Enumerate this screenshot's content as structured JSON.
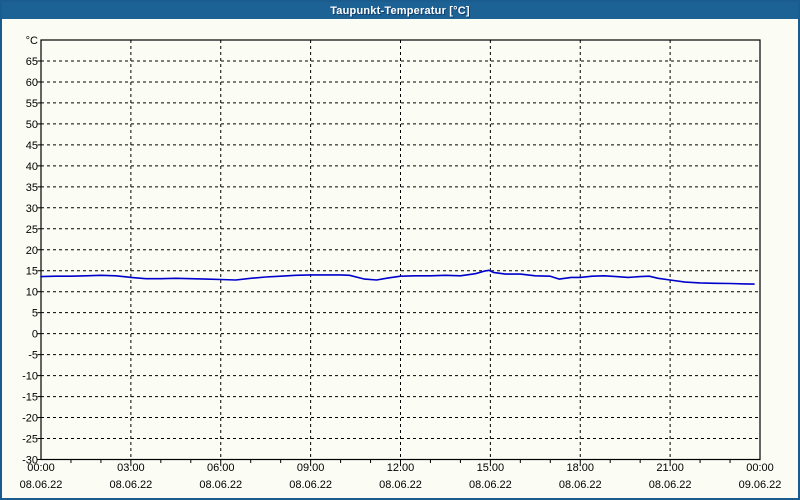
{
  "window": {
    "title": "Taupunkt-Temperatur [°C]",
    "titlebar_color": "#1d6295",
    "border_color": "#1a5c8e",
    "background_color": "#fbfdf4"
  },
  "chart_data": {
    "type": "line",
    "title": "Taupunkt-Temperatur [°C]",
    "grid": "dashed",
    "legend": "none",
    "x_axis": {
      "unit": "time",
      "range_hours": [
        0,
        24
      ],
      "major_tick_hours": 3,
      "minor_tick_hours": 1,
      "gridline_hours": [
        3,
        6,
        9,
        12,
        15,
        18,
        21
      ],
      "labels": [
        {
          "hour": 0,
          "time": "00:00",
          "date": "08.06.22"
        },
        {
          "hour": 3,
          "time": "03:00",
          "date": "08.06.22"
        },
        {
          "hour": 6,
          "time": "06:00",
          "date": "08.06.22"
        },
        {
          "hour": 9,
          "time": "09:00",
          "date": "08.06.22"
        },
        {
          "hour": 12,
          "time": "12:00",
          "date": "08.06.22"
        },
        {
          "hour": 15,
          "time": "15:00",
          "date": "08.06.22"
        },
        {
          "hour": 18,
          "time": "18:00",
          "date": "08.06.22"
        },
        {
          "hour": 21,
          "time": "21:00",
          "date": "08.06.22"
        },
        {
          "hour": 24,
          "time": "00:00",
          "date": "09.06.22"
        }
      ]
    },
    "y_axis": {
      "label": "°C",
      "min": -30,
      "max": 70,
      "tick_step": 5,
      "tick_labels": [
        -30,
        -25,
        -20,
        -15,
        -10,
        -5,
        0,
        5,
        10,
        15,
        20,
        25,
        30,
        35,
        40,
        45,
        50,
        55,
        60,
        65
      ]
    },
    "series": [
      {
        "name": "Taupunkt-Temperatur",
        "color": "#0000cd",
        "points": [
          [
            0,
            13.6
          ],
          [
            0.5,
            13.7
          ],
          [
            1,
            13.7
          ],
          [
            1.5,
            13.8
          ],
          [
            2,
            13.9
          ],
          [
            2.5,
            13.8
          ],
          [
            3,
            13.4
          ],
          [
            3.5,
            13.1
          ],
          [
            4,
            13.1
          ],
          [
            4.5,
            13.2
          ],
          [
            5,
            13.1
          ],
          [
            5.5,
            13.0
          ],
          [
            6,
            12.9
          ],
          [
            6.5,
            12.8
          ],
          [
            7,
            13.2
          ],
          [
            7.5,
            13.5
          ],
          [
            8,
            13.7
          ],
          [
            8.5,
            13.9
          ],
          [
            9,
            14.0
          ],
          [
            9.5,
            14.0
          ],
          [
            10,
            14.0
          ],
          [
            10.3,
            13.9
          ],
          [
            10.8,
            13.0
          ],
          [
            11.2,
            12.8
          ],
          [
            11.6,
            13.3
          ],
          [
            12,
            13.7
          ],
          [
            12.5,
            13.8
          ],
          [
            13,
            13.8
          ],
          [
            13.5,
            13.9
          ],
          [
            14,
            13.8
          ],
          [
            14.5,
            14.3
          ],
          [
            14.8,
            14.9
          ],
          [
            14.95,
            15.1
          ],
          [
            15.1,
            14.6
          ],
          [
            15.5,
            14.2
          ],
          [
            16,
            14.2
          ],
          [
            16.5,
            13.8
          ],
          [
            17,
            13.7
          ],
          [
            17.3,
            13.0
          ],
          [
            17.7,
            13.4
          ],
          [
            18,
            13.4
          ],
          [
            18.4,
            13.7
          ],
          [
            18.8,
            13.8
          ],
          [
            19.2,
            13.6
          ],
          [
            19.6,
            13.4
          ],
          [
            20,
            13.6
          ],
          [
            20.3,
            13.7
          ],
          [
            20.6,
            13.2
          ],
          [
            21,
            12.8
          ],
          [
            21.5,
            12.3
          ],
          [
            22,
            12.1
          ],
          [
            22.5,
            12.0
          ],
          [
            23,
            11.95
          ],
          [
            23.5,
            11.85
          ],
          [
            23.8,
            11.8
          ]
        ]
      }
    ]
  }
}
